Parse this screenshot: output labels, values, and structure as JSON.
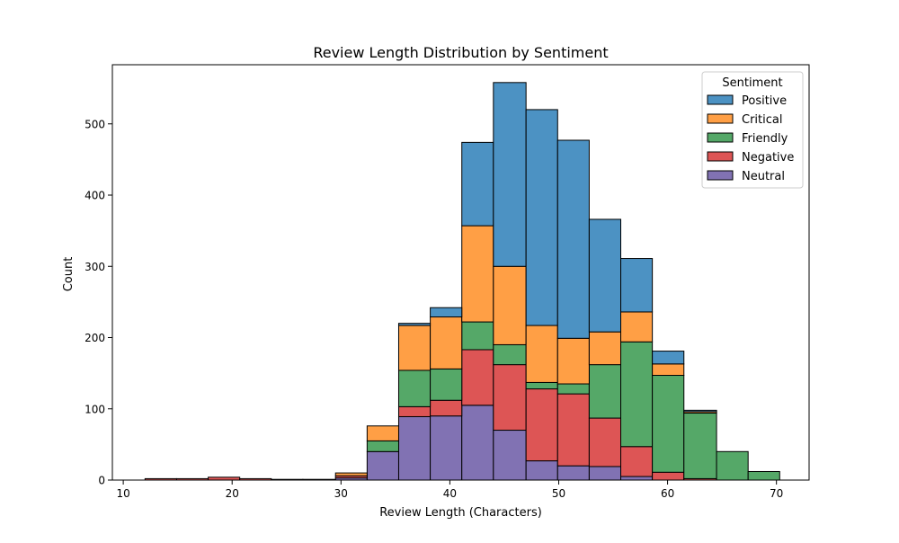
{
  "chart_data": {
    "type": "bar",
    "stacked": true,
    "title": "Review Length Distribution by Sentiment",
    "xlabel": "Review Length (Characters)",
    "ylabel": "Count",
    "xlim": [
      9,
      73
    ],
    "ylim": [
      0,
      583
    ],
    "xticks": [
      10,
      20,
      30,
      40,
      50,
      60,
      70
    ],
    "yticks": [
      0,
      100,
      200,
      300,
      400,
      500
    ],
    "grid": false,
    "legend": {
      "title": "Sentiment",
      "placement": "top-right"
    },
    "bin_edges": [
      12.0,
      14.9,
      17.8,
      20.7,
      23.6,
      26.5,
      29.5,
      32.4,
      35.3,
      38.2,
      41.1,
      44.0,
      47.0,
      49.9,
      52.8,
      55.7,
      58.6,
      61.5,
      64.5,
      67.4,
      70.3
    ],
    "series": [
      {
        "name": "Neutral",
        "color": "#8172b3",
        "values": [
          0,
          0,
          0,
          0,
          0,
          0,
          3,
          40,
          89,
          90,
          105,
          70,
          27,
          20,
          19,
          5,
          0,
          0,
          0,
          0
        ]
      },
      {
        "name": "Negative",
        "color": "#dd5555",
        "values": [
          2,
          2,
          4,
          2,
          0,
          0,
          3,
          0,
          14,
          22,
          78,
          92,
          101,
          101,
          68,
          42,
          11,
          2,
          0,
          0
        ]
      },
      {
        "name": "Friendly",
        "color": "#55a868",
        "values": [
          0,
          0,
          0,
          0,
          1,
          1,
          0,
          15,
          51,
          44,
          39,
          28,
          9,
          14,
          75,
          147,
          136,
          92,
          40,
          12
        ]
      },
      {
        "name": "Critical",
        "color": "#ff9f45",
        "values": [
          0,
          0,
          0,
          0,
          0,
          0,
          4,
          21,
          63,
          73,
          135,
          110,
          80,
          64,
          46,
          42,
          16,
          2,
          0,
          0
        ]
      },
      {
        "name": "Positive",
        "color": "#4c92c3",
        "values": [
          0,
          0,
          0,
          0,
          0,
          0,
          0,
          0,
          3,
          13,
          117,
          258,
          303,
          278,
          158,
          75,
          18,
          2,
          0,
          0
        ]
      }
    ],
    "legend_order": [
      "Positive",
      "Critical",
      "Friendly",
      "Negative",
      "Neutral"
    ]
  }
}
